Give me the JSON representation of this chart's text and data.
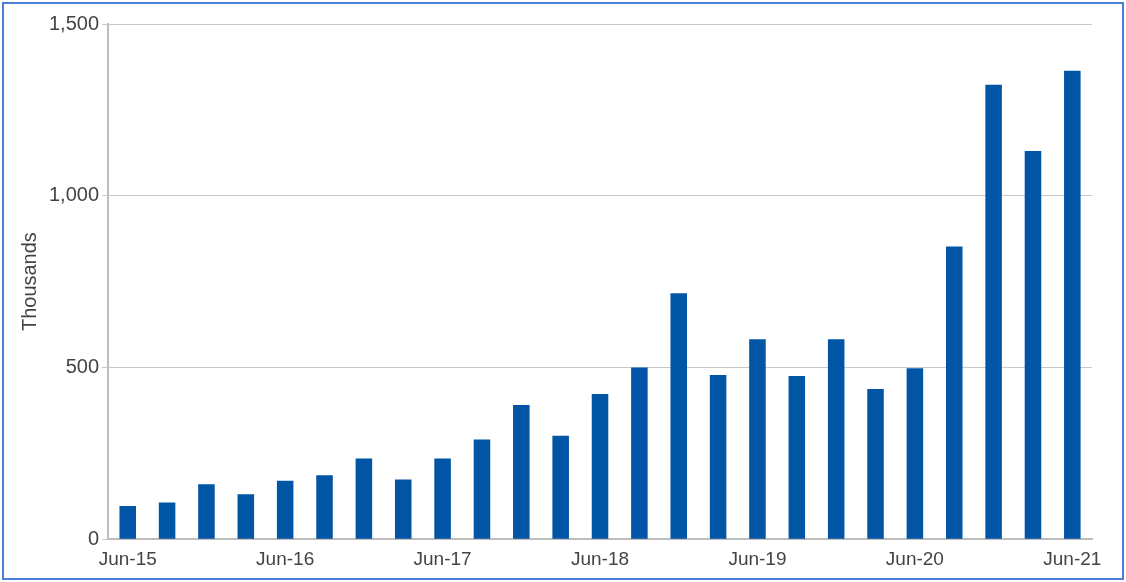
{
  "chart_data": {
    "type": "bar",
    "ylabel": "Thousands",
    "categories": [
      "Jun-15",
      null,
      null,
      null,
      "Jun-16",
      null,
      null,
      null,
      "Jun-17",
      null,
      null,
      null,
      "Jun-18",
      null,
      null,
      null,
      "Jun-19",
      null,
      null,
      null,
      "Jun-20",
      null,
      null,
      null,
      "Jun-21"
    ],
    "values": [
      97,
      107,
      160,
      131,
      170,
      186,
      235,
      174,
      235,
      290,
      391,
      301,
      423,
      500,
      716,
      478,
      582,
      475,
      582,
      437,
      498,
      852,
      1323,
      1130,
      1364
    ],
    "color": "#0055a5",
    "ylim": [
      0,
      1500
    ],
    "yticks": [
      0,
      {
        "value": 500,
        "label": "500"
      },
      {
        "value": 1000,
        "label": "1,000"
      },
      {
        "value": 1500,
        "label": "1,500"
      }
    ],
    "grid": "y",
    "legend": false
  }
}
